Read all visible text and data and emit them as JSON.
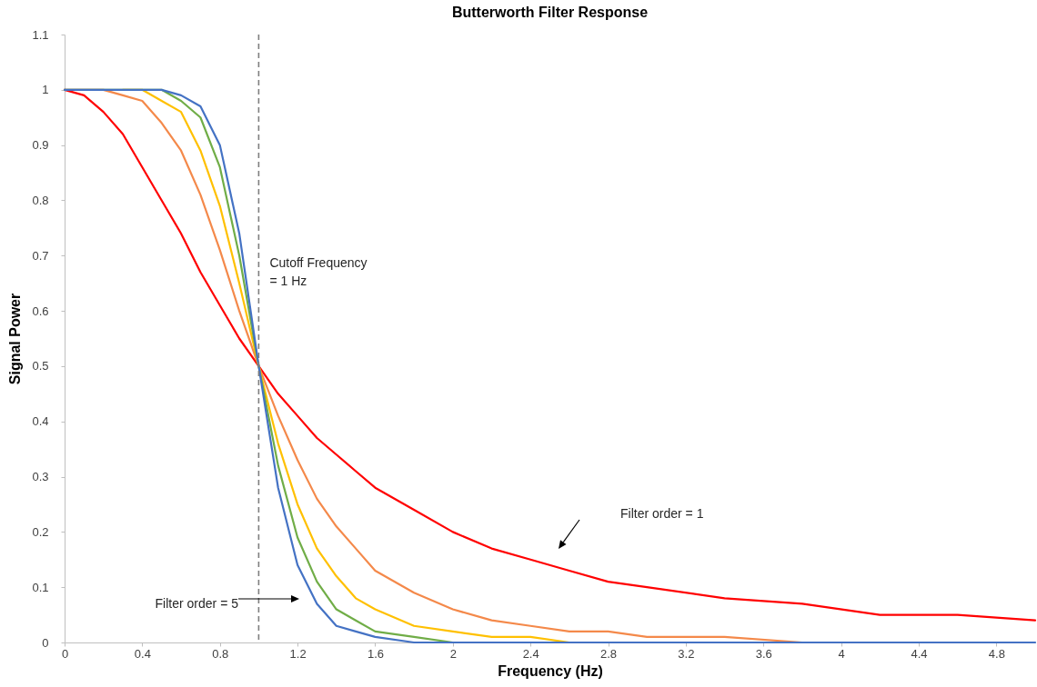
{
  "chart_data": {
    "type": "line",
    "title": "Butterworth Filter Response",
    "xlabel": "Frequency (Hz)",
    "ylabel": "Signal Power",
    "x": [
      0,
      0.1,
      0.2,
      0.3,
      0.4,
      0.5,
      0.6,
      0.7,
      0.8,
      0.9,
      1,
      1.1,
      1.2,
      1.3,
      1.4,
      1.5,
      1.6,
      1.8,
      2,
      2.2,
      2.4,
      2.6,
      2.8,
      3,
      3.4,
      3.8,
      4.2,
      4.6,
      5
    ],
    "series": [
      {
        "color": "#ff0000",
        "values": [
          1,
          0.99,
          0.96,
          0.92,
          0.86,
          0.8,
          0.74,
          0.67,
          0.61,
          0.55,
          0.5,
          0.45,
          0.41,
          0.37,
          0.34,
          0.31,
          0.28,
          0.24,
          0.2,
          0.17,
          0.15,
          0.13,
          0.11,
          0.1,
          0.08,
          0.07,
          0.05,
          0.05,
          0.04
        ]
      },
      {
        "color": "#f4894a",
        "values": [
          1,
          1,
          1,
          0.99,
          0.98,
          0.94,
          0.89,
          0.81,
          0.71,
          0.6,
          0.5,
          0.41,
          0.33,
          0.26,
          0.21,
          0.17,
          0.13,
          0.09,
          0.06,
          0.04,
          0.03,
          0.02,
          0.02,
          0.01,
          0.01,
          0,
          0,
          null,
          null
        ]
      },
      {
        "color": "#ffc000",
        "values": [
          null,
          null,
          null,
          1,
          1,
          0.98,
          0.96,
          0.89,
          0.79,
          0.65,
          0.5,
          0.36,
          0.25,
          0.17,
          0.12,
          0.08,
          0.06,
          0.03,
          0.02,
          0.01,
          0.01,
          0,
          0,
          null,
          null,
          null,
          null,
          null,
          null
        ]
      },
      {
        "color": "#70ad47",
        "values": [
          1,
          null,
          null,
          null,
          null,
          1,
          0.98,
          0.95,
          0.86,
          0.7,
          0.5,
          0.32,
          0.19,
          0.11,
          0.06,
          0.04,
          0.02,
          0.01,
          0,
          0,
          null,
          null,
          null,
          null,
          null,
          null,
          null,
          null,
          null
        ]
      },
      {
        "color": "#4472c4",
        "values": [
          1,
          1,
          1,
          1,
          1,
          1,
          0.99,
          0.97,
          0.9,
          0.74,
          0.5,
          0.28,
          0.14,
          0.07,
          0.03,
          0.02,
          0.01,
          0,
          0,
          0,
          0,
          0,
          0,
          0,
          0,
          0,
          0,
          0,
          0
        ]
      }
    ],
    "xlim": [
      0,
      5
    ],
    "xticks": [
      0,
      0.4,
      0.8,
      1.2,
      1.6,
      2,
      2.4,
      2.8,
      3.2,
      3.6,
      4,
      4.4,
      4.8
    ],
    "ylim": [
      0,
      1.1
    ],
    "yticks": [
      0,
      0.1,
      0.2,
      0.3,
      0.4,
      0.5,
      0.6,
      0.7,
      0.8,
      0.9,
      1,
      1.1
    ],
    "ref_lines": [
      {
        "axis": "x",
        "value": 1,
        "label": "Cutoff Frequency\n= 1 Hz",
        "color": "#7f7f7f",
        "line_style": "dashed"
      }
    ],
    "annotations": [
      "Filter order = 1",
      "Filter order = 5"
    ],
    "line_style": "solid",
    "marker": "none",
    "grid": false,
    "legend": false
  }
}
